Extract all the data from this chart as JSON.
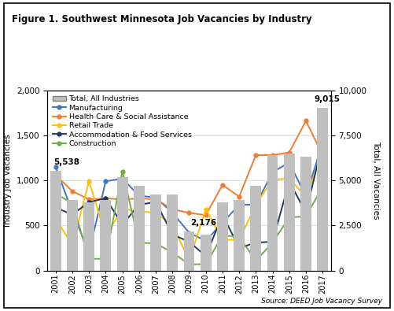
{
  "title": "Figure 1. Southwest Minnesota Job Vacancies by Industry",
  "years": [
    2001,
    2002,
    2003,
    2004,
    2005,
    2006,
    2007,
    2008,
    2009,
    2010,
    2011,
    2012,
    2013,
    2014,
    2015,
    2016,
    2017
  ],
  "total_all": [
    5538,
    3900,
    3800,
    3900,
    5200,
    4700,
    4200,
    4200,
    2176,
    2000,
    3800,
    3900,
    4700,
    6400,
    6500,
    6300,
    9015
  ],
  "manufacturing": [
    1150,
    650,
    200,
    990,
    1020,
    830,
    810,
    640,
    420,
    330,
    530,
    730,
    730,
    1090,
    1200,
    820,
    1420
  ],
  "health_care": [
    1060,
    880,
    790,
    800,
    790,
    800,
    790,
    680,
    640,
    615,
    950,
    820,
    1280,
    1280,
    1310,
    1660,
    1280
  ],
  "retail_trade": [
    580,
    280,
    990,
    390,
    680,
    660,
    640,
    510,
    110,
    680,
    340,
    340,
    730,
    1010,
    1020,
    820,
    1300
  ],
  "accommodation": [
    700,
    620,
    760,
    800,
    510,
    730,
    760,
    400,
    320,
    160,
    620,
    250,
    310,
    320,
    990,
    640,
    1420
  ],
  "construction": [
    850,
    750,
    130,
    130,
    1100,
    310,
    300,
    200,
    70,
    70,
    390,
    375,
    110,
    310,
    590,
    600,
    930
  ],
  "ylabel_left": "Industry Job Vacancies",
  "ylabel_right": "Total, All Vacancies",
  "ylim_left": [
    0,
    2000
  ],
  "ylim_right": [
    0,
    10000
  ],
  "yticks_left": [
    0,
    500,
    1000,
    1500,
    2000
  ],
  "yticks_right": [
    0,
    2500,
    5000,
    7500,
    10000
  ],
  "source": "Source: DEED Job Vacancy Survey",
  "bar_color": "#bfbfbf",
  "mfg_color": "#4472c4",
  "hc_color": "#ed7d31",
  "retail_color": "#ffc000",
  "accom_color": "#1f3864",
  "const_color": "#70ad47",
  "annotation_2001": "5,538",
  "annotation_2009": "2,176",
  "annotation_2017": "9,015",
  "fig_width": 5.01,
  "fig_height": 3.95,
  "dpi": 100
}
